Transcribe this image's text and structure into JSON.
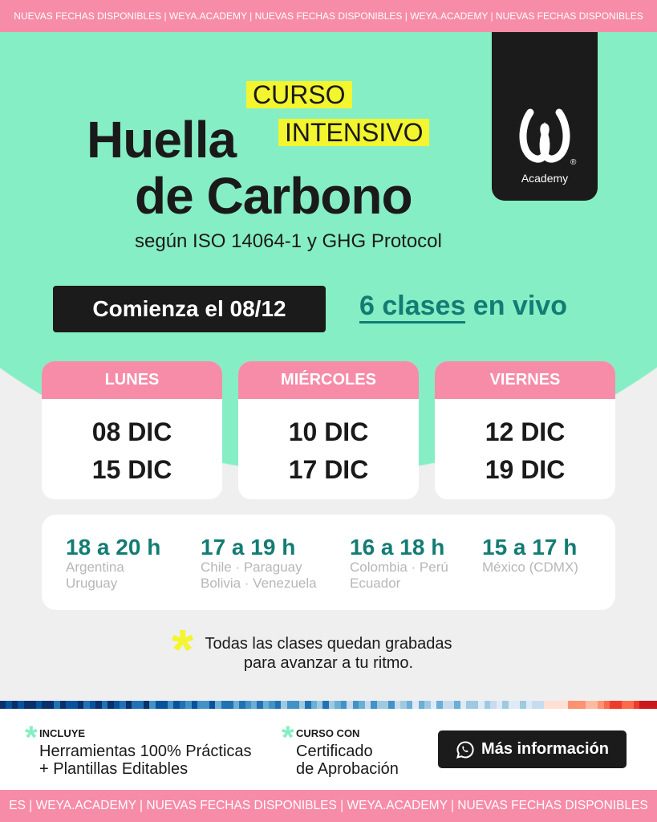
{
  "ticker": {
    "top": "NUEVAS FECHAS DISPONIBLES | WEYA.ACADEMY | NUEVAS FECHAS DISPONIBLES | WEYA.ACADEMY | NUEVAS FECHAS DISPONIBLES",
    "bottom": "ES | WEYA.ACADEMY | NUEVAS FECHAS DISPONIBLES | WEYA.ACADEMY | NUEVAS FECHAS DISPONIBLES"
  },
  "header": {
    "tag1": "CURSO",
    "tag2": "INTENSIVO",
    "title1": "Huella",
    "title2": "de Carbono",
    "subtitle": "según ISO 14064-1 y GHG Protocol"
  },
  "logo": {
    "text": "Academy",
    "mark": "®"
  },
  "start": "Comienza el 08/12",
  "live": {
    "part1": "6 clases",
    "part2": " en vivo"
  },
  "days": [
    {
      "name": "LUNES",
      "d1": "08 DIC",
      "d2": "15 DIC"
    },
    {
      "name": "MIÉRCOLES",
      "d1": "10 DIC",
      "d2": "17 DIC"
    },
    {
      "name": "VIERNES",
      "d1": "12 DIC",
      "d2": "19 DIC"
    }
  ],
  "times": [
    {
      "time": "18 a 20 h",
      "c1": "Argentina",
      "c2": "Uruguay"
    },
    {
      "time": "17 a 19 h",
      "c1": "Chile · Paraguay",
      "c2": "Bolivia · Venezuela"
    },
    {
      "time": "16 a 18 h",
      "c1": "Colombia · Perú",
      "c2": "Ecuador"
    },
    {
      "time": "15 a 17 h",
      "c1": "México (CDMX)",
      "c2": ""
    }
  ],
  "note": {
    "l1": "Todas las clases quedan grabadas",
    "l2": "para avanzar a tu ritmo."
  },
  "features": [
    {
      "key": "INCLUYE",
      "l1": "Herramientas 100% Prácticas",
      "l2": "+ Plantillas Editables"
    },
    {
      "key": "CURSO CON",
      "l1": "Certificado",
      "l2": "de Aprobación"
    }
  ],
  "cta": {
    "label": "Más información",
    "icon": "whatsapp-icon"
  },
  "colors": {
    "mint": "#86eec4",
    "pink": "#f78ca8",
    "teal": "#137c74",
    "yellow": "#f3f52e",
    "dark": "#1b1b1b"
  }
}
